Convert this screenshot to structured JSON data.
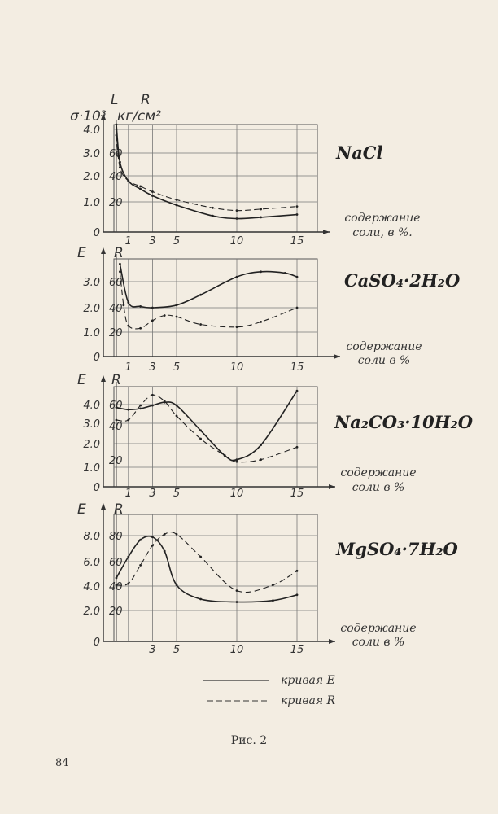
{
  "page_number": "84",
  "caption": "Рис. 2",
  "legend": {
    "solid_label": "кривая E",
    "dashed_label": "кривая R"
  },
  "chart_data": [
    {
      "type": "line",
      "title": "NaCl",
      "left_axis_labels": [
        "L",
        "σ·10³"
      ],
      "right_axis_labels": [
        "R",
        "кг/см²"
      ],
      "left_ticks": [
        "4.0",
        "3.0",
        "2.0",
        "1.0",
        "0"
      ],
      "right_ticks": [
        "60",
        "40",
        "20"
      ],
      "x_ticks": [
        "1",
        "3",
        "5",
        "10",
        "15"
      ],
      "xlabel": [
        "содержание",
        "соли, в %."
      ],
      "xlim": [
        0,
        15
      ],
      "ylim": [
        0,
        4.0
      ],
      "series": [
        {
          "style": "solid",
          "x": [
            0,
            0.3,
            1,
            2,
            3,
            5,
            8,
            10,
            12,
            15
          ],
          "y": [
            4.0,
            2.6,
            1.9,
            1.6,
            1.35,
            1.0,
            0.6,
            0.5,
            0.55,
            0.65
          ]
        },
        {
          "style": "dashed",
          "x": [
            0,
            0.3,
            1,
            2,
            3,
            5,
            8,
            10,
            12,
            15
          ],
          "y": [
            3.6,
            2.4,
            1.9,
            1.7,
            1.5,
            1.2,
            0.9,
            0.8,
            0.85,
            0.95
          ]
        }
      ]
    },
    {
      "type": "line",
      "title": "CaSO₄·2H₂O",
      "left_axis_labels": [
        "E"
      ],
      "right_axis_labels": [
        "R"
      ],
      "left_ticks": [
        "3.0",
        "2.0",
        "1.0",
        "0"
      ],
      "right_ticks": [
        "60",
        "40",
        "20"
      ],
      "x_ticks": [
        "1",
        "3",
        "5",
        "10",
        "15"
      ],
      "xlabel": [
        "содержание",
        "соли в %"
      ],
      "xlim": [
        0,
        15
      ],
      "ylim": [
        0,
        3.8
      ],
      "series": [
        {
          "style": "solid",
          "x": [
            0.3,
            1,
            2,
            3,
            5,
            7,
            10,
            12,
            14,
            15
          ],
          "y": [
            3.6,
            2.1,
            1.95,
            1.9,
            2.0,
            2.4,
            3.1,
            3.3,
            3.25,
            3.1
          ]
        },
        {
          "style": "dashed",
          "x": [
            0.3,
            0.6,
            1,
            2,
            3,
            4,
            5,
            7,
            10,
            12,
            15
          ],
          "y": [
            3.3,
            2.0,
            1.2,
            1.1,
            1.4,
            1.6,
            1.55,
            1.25,
            1.15,
            1.35,
            1.9
          ]
        }
      ]
    },
    {
      "type": "line",
      "title": "Na₂CO₃·10H₂O",
      "left_axis_labels": [
        "E"
      ],
      "right_axis_labels": [
        "R"
      ],
      "left_ticks": [
        "4.0",
        "3.0",
        "2.0",
        "1.0",
        "0"
      ],
      "right_ticks": [
        "60",
        "40",
        "20"
      ],
      "x_ticks": [
        "1",
        "3",
        "5",
        "10",
        "15"
      ],
      "xlabel": [
        "содержание",
        "соли в %"
      ],
      "xlim": [
        0,
        15
      ],
      "ylim": [
        0,
        4.8
      ],
      "series": [
        {
          "style": "solid",
          "x": [
            0,
            1,
            2,
            3,
            4,
            5,
            7,
            9,
            10,
            12,
            15
          ],
          "y": [
            3.8,
            3.7,
            3.75,
            3.9,
            4.05,
            3.9,
            2.7,
            1.5,
            1.3,
            2.0,
            4.6
          ]
        },
        {
          "style": "dashed",
          "x": [
            0,
            1,
            2,
            3,
            4,
            5,
            7,
            9,
            10,
            12,
            15
          ],
          "y": [
            3.2,
            3.2,
            3.9,
            4.4,
            4.1,
            3.4,
            2.3,
            1.5,
            1.2,
            1.3,
            1.9
          ]
        }
      ]
    },
    {
      "type": "line",
      "title": "MgSO₄·7H₂O",
      "left_axis_labels": [
        "E"
      ],
      "right_axis_labels": [
        "R"
      ],
      "left_ticks": [
        "8.0",
        "6.0",
        "4.0",
        "2.0",
        "0"
      ],
      "right_ticks": [
        "80",
        "60",
        "40",
        "20"
      ],
      "x_ticks": [
        "3",
        "5",
        "10",
        "15"
      ],
      "xlabel": [
        "содержание",
        "соли в %"
      ],
      "xlim": [
        0,
        15
      ],
      "ylim": [
        0,
        9.0
      ],
      "series": [
        {
          "style": "solid",
          "x": [
            0,
            1,
            2,
            3,
            4,
            5,
            7,
            10,
            13,
            15
          ],
          "y": [
            4.5,
            6.0,
            7.2,
            7.4,
            6.4,
            4.0,
            3.0,
            2.8,
            2.9,
            3.3
          ]
        },
        {
          "style": "dashed",
          "x": [
            0,
            1,
            2,
            3,
            4,
            5,
            7,
            10,
            13,
            15
          ],
          "y": [
            4.0,
            4.1,
            5.4,
            6.8,
            7.6,
            7.6,
            6.0,
            3.6,
            4.0,
            5.0
          ]
        }
      ]
    }
  ]
}
